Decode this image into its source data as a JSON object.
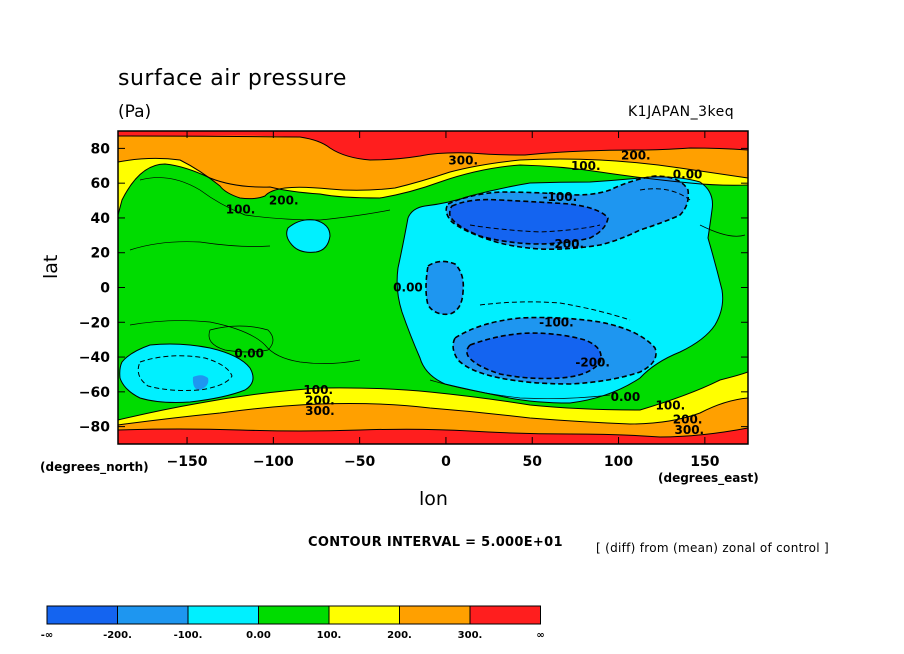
{
  "chart_data": {
    "type": "contour",
    "title": "surface air pressure",
    "units": "(Pa)",
    "run_name": "K1JAPAN_3keq",
    "xlabel": "lon",
    "ylabel": "lat",
    "x_unit_note": "(degrees_east)",
    "y_unit_note": "(degrees_north)",
    "x_range": [
      -190,
      175
    ],
    "y_range": [
      -90,
      90
    ],
    "x_ticks": [
      -150,
      -100,
      -50,
      0,
      50,
      100,
      150
    ],
    "y_ticks": [
      80,
      60,
      40,
      20,
      0,
      -20,
      -40,
      -60,
      -80
    ],
    "contour_interval_text": "CONTOUR INTERVAL = 5.000E+01",
    "note": "[ (diff) from (mean) zonal of control ]",
    "colorbar": {
      "levels": [
        "-∞",
        "-200.",
        "-100.",
        "0.00",
        "100.",
        "200.",
        "300.",
        "∞"
      ],
      "colors": [
        "#1464f0",
        "#1e96f0",
        "#00f0ff",
        "#00dc00",
        "#ffff00",
        "#ffa000",
        "#ff1e1e"
      ]
    },
    "contour_labels": [
      {
        "text": "300.",
        "lon": 10,
        "lat": 73
      },
      {
        "text": "200.",
        "lon": 110,
        "lat": 76
      },
      {
        "text": "100.",
        "lon": 81,
        "lat": 70
      },
      {
        "text": "0.00",
        "lon": 140,
        "lat": 65
      },
      {
        "text": "200.",
        "lon": -94,
        "lat": 50
      },
      {
        "text": "100.",
        "lon": -119,
        "lat": 45
      },
      {
        "text": "-100.",
        "lon": 66,
        "lat": 52
      },
      {
        "text": "-200.",
        "lon": 70,
        "lat": 25
      },
      {
        "text": "0.00",
        "lon": -22,
        "lat": 0
      },
      {
        "text": "-100.",
        "lon": 64,
        "lat": -20
      },
      {
        "text": "0.00",
        "lon": -114,
        "lat": -38
      },
      {
        "text": "-200.",
        "lon": 85,
        "lat": -43
      },
      {
        "text": "0.00",
        "lon": 104,
        "lat": -63
      },
      {
        "text": "100.",
        "lon": -74,
        "lat": -59
      },
      {
        "text": "200.",
        "lon": -73,
        "lat": -65
      },
      {
        "text": "300.",
        "lon": -73,
        "lat": -71
      },
      {
        "text": "100.",
        "lon": 130,
        "lat": -68
      },
      {
        "text": "200.",
        "lon": 140,
        "lat": -76
      },
      {
        "text": "300.",
        "lon": 141,
        "lat": -82
      }
    ]
  }
}
